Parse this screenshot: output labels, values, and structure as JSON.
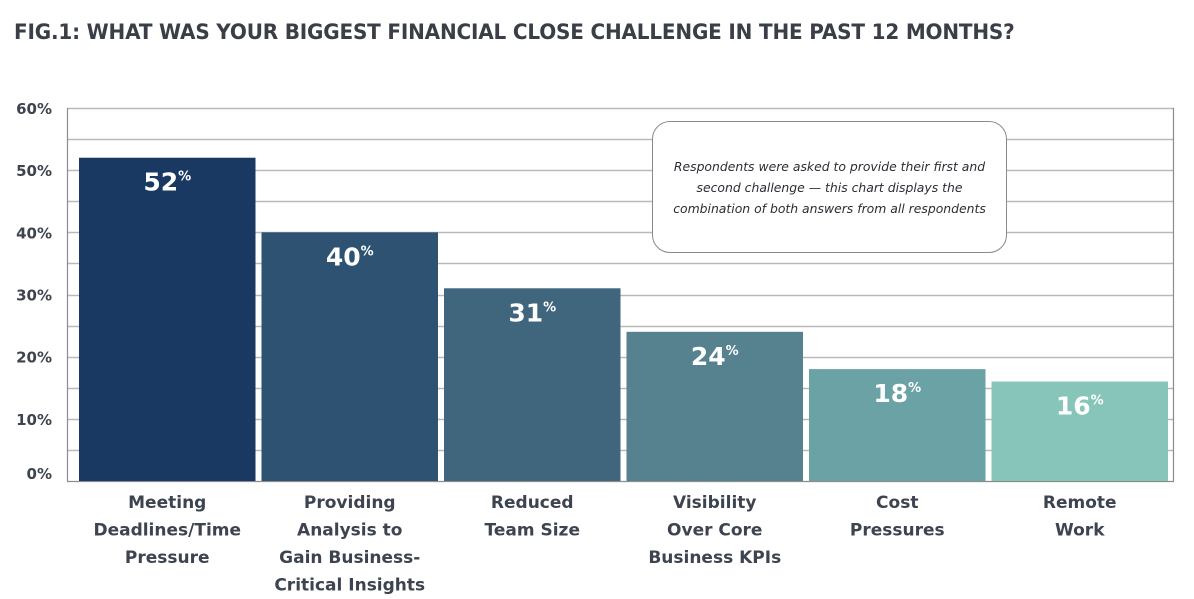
{
  "chart_data": {
    "type": "bar",
    "title": "FIG.1: WHAT WAS YOUR BIGGEST FINANCIAL CLOSE CHALLENGE IN THE PAST 12 MONTHS?",
    "xlabel": "",
    "ylabel": "",
    "ylim": [
      0,
      60
    ],
    "yticks": [
      0,
      10,
      20,
      30,
      40,
      50,
      60
    ],
    "ytick_labels": [
      "0%",
      "10%",
      "20%",
      "30%",
      "40%",
      "50%",
      "60%"
    ],
    "minor_gridlines_every": 5,
    "grid": true,
    "legend": "none",
    "categories": [
      [
        "Meeting",
        "Deadlines/Time",
        "Pressure"
      ],
      [
        "Providing",
        "Analysis to",
        "Gain Business-",
        "Critical Insights"
      ],
      [
        "Reduced",
        "Team Size"
      ],
      [
        "Visibility",
        "Over Core",
        "Business KPIs"
      ],
      [
        "Cost",
        "Pressures"
      ],
      [
        "Remote",
        "Work"
      ]
    ],
    "values": [
      52,
      40,
      31,
      24,
      18,
      16
    ],
    "data_labels": [
      "52",
      "40",
      "31",
      "24",
      "18",
      "16"
    ],
    "data_label_suffix": "%",
    "bar_colors": [
      "#193962",
      "#2d5272",
      "#40667e",
      "#56818f",
      "#6ba2a5",
      "#87c5ba"
    ],
    "annotation": "Respondents were asked to provide their first and second challenge — this chart displays the combination of both answers from all respondents"
  }
}
